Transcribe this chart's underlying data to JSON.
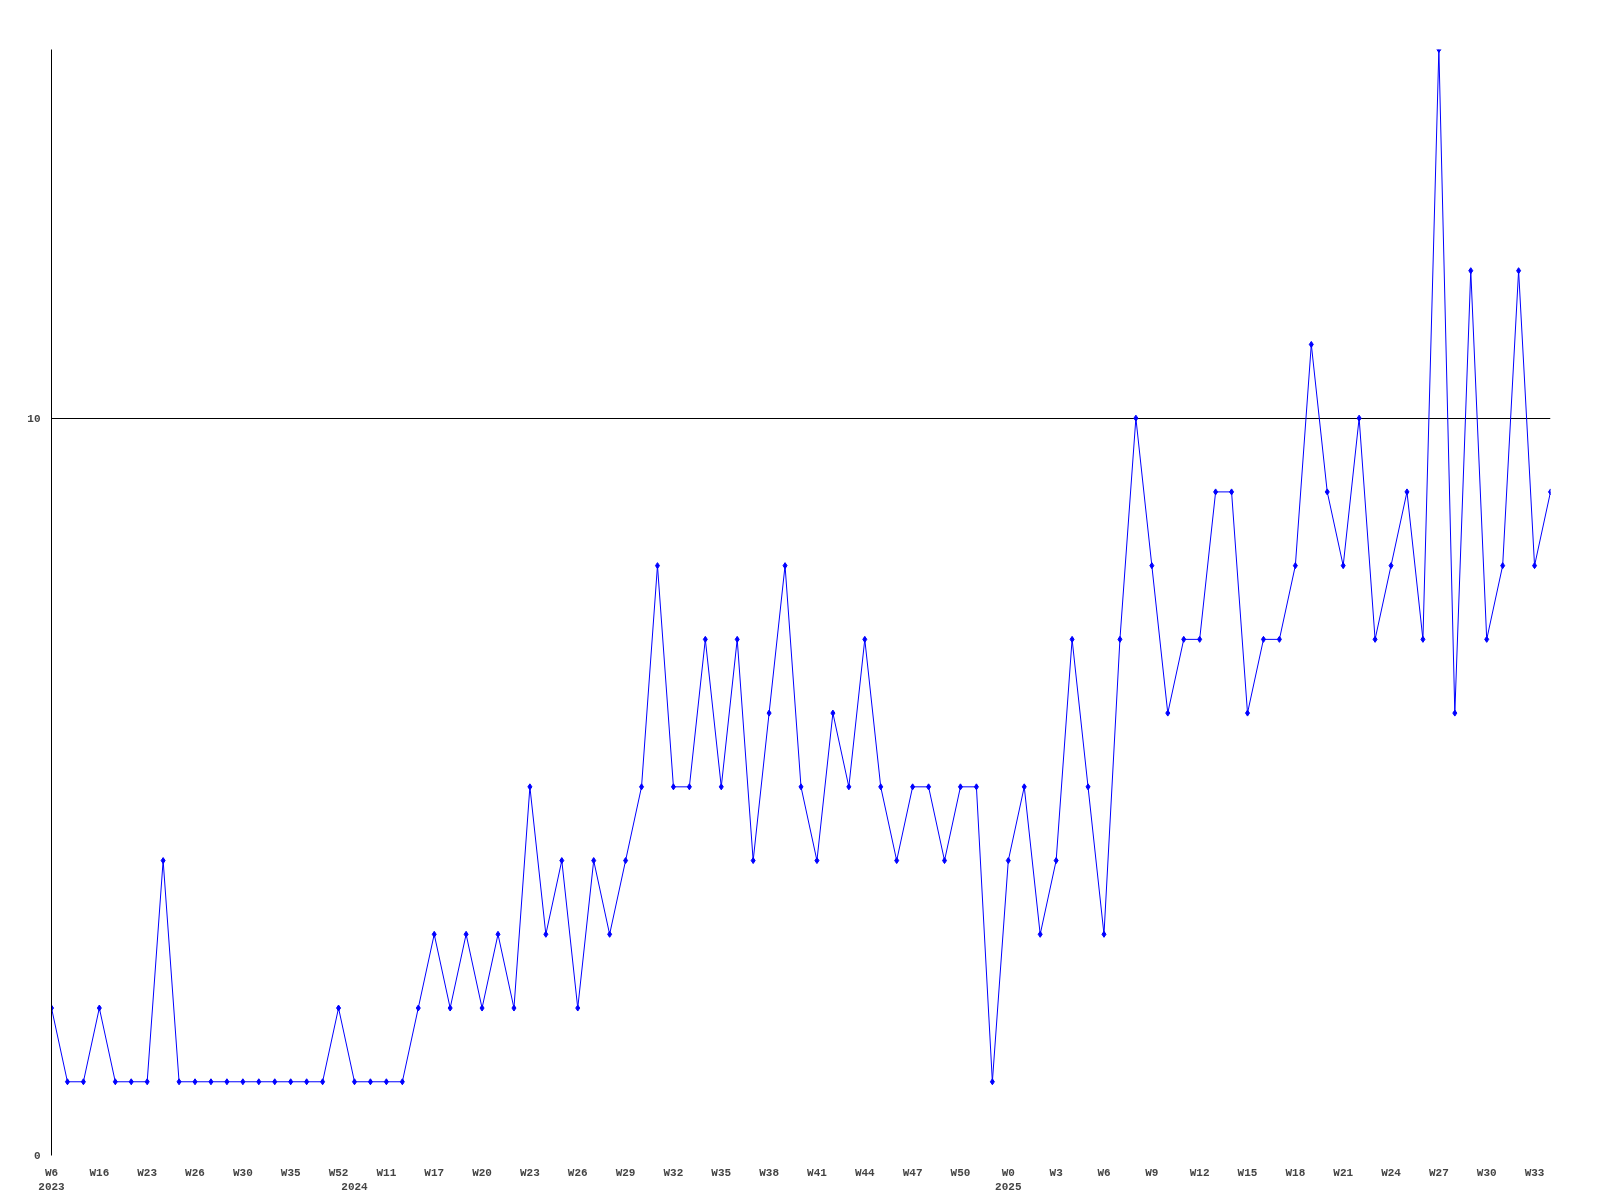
{
  "chart_data": {
    "type": "line",
    "categories": [
      "W6\n2023",
      null,
      null,
      "W16",
      null,
      null,
      "W23",
      null,
      null,
      "W26",
      null,
      null,
      "W30",
      null,
      null,
      "W35",
      null,
      null,
      "W52",
      "\n2024",
      null,
      "W11",
      null,
      null,
      "W17",
      null,
      null,
      "W20",
      null,
      null,
      "W23",
      null,
      null,
      "W26",
      null,
      null,
      "W29",
      null,
      null,
      "W32",
      null,
      null,
      "W35",
      null,
      null,
      "W38",
      null,
      null,
      "W41",
      null,
      null,
      "W44",
      null,
      null,
      "W47",
      null,
      null,
      "W50",
      null,
      null,
      "W0\n2025",
      null,
      null,
      "W3",
      null,
      null,
      "W6",
      null,
      null,
      "W9",
      null,
      null,
      "W12",
      null,
      null,
      "W15",
      null,
      null,
      "W18",
      null,
      null,
      "W21",
      null,
      null,
      "W24",
      null,
      null,
      "W27",
      null,
      null,
      "W30",
      null,
      null,
      "W33",
      null
    ],
    "series": [
      {
        "color": "#0000ff",
        "values": [
          2,
          1,
          1,
          2,
          1,
          1,
          1,
          4,
          1,
          1,
          1,
          1,
          1,
          1,
          1,
          1,
          1,
          1,
          2,
          1,
          1,
          1,
          1,
          2,
          3,
          2,
          3,
          2,
          3,
          2,
          5,
          3,
          4,
          2,
          4,
          3,
          4,
          5,
          8,
          5,
          5,
          7,
          5,
          7,
          4,
          6,
          8,
          5,
          4,
          6,
          5,
          7,
          5,
          4,
          5,
          5,
          4,
          5,
          5,
          1,
          4,
          5,
          3,
          4,
          7,
          5,
          3,
          7,
          10,
          8,
          6,
          7,
          7,
          9,
          9,
          6,
          7,
          7,
          8,
          11,
          9,
          8,
          10,
          7,
          8,
          9,
          7,
          15,
          6,
          12,
          7,
          8,
          12,
          8,
          9
        ]
      }
    ],
    "ylim": [
      0,
      15
    ],
    "yticks": [
      0,
      10
    ],
    "grid": "y",
    "marker": "diamond",
    "line_style": "solid"
  }
}
